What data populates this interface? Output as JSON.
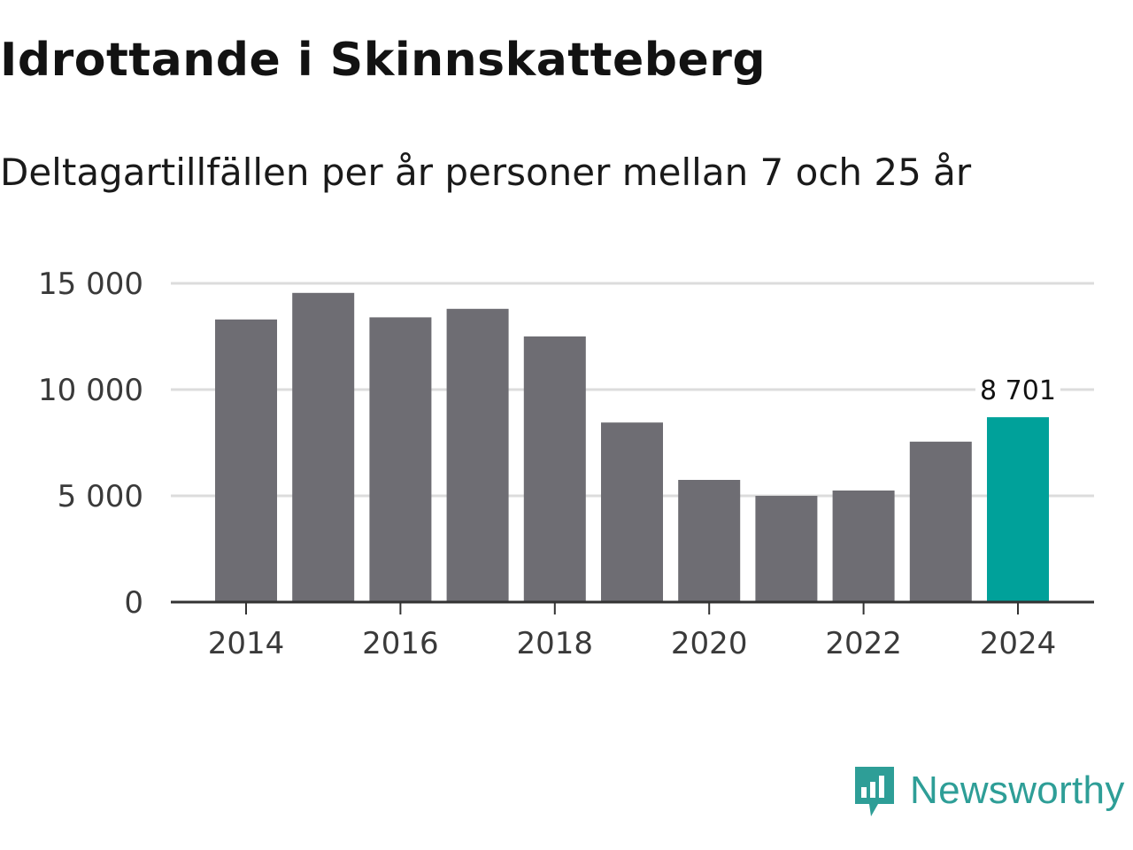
{
  "header": {
    "title": "Idrottande i Skinnskatteberg",
    "subtitle": "Deltagartillfällen per år personer mellan 7 och 25 år"
  },
  "brand": {
    "name": "Newsworthy",
    "color": "#2e9e97"
  },
  "colors": {
    "bar": "#6e6d73",
    "highlight": "#00a19a",
    "grid": "#dcdcdc",
    "axis": "#333333"
  },
  "chart_data": {
    "type": "bar",
    "title": "Idrottande i Skinnskatteberg",
    "subtitle": "Deltagartillfällen per år personer mellan 7 och 25 år",
    "xlabel": "",
    "ylabel": "",
    "categories": [
      "2014",
      "2015",
      "2016",
      "2017",
      "2018",
      "2019",
      "2020",
      "2021",
      "2022",
      "2023",
      "2024"
    ],
    "values": [
      13300,
      14550,
      13400,
      13800,
      12500,
      8450,
      5750,
      5000,
      5250,
      7550,
      8701
    ],
    "ylim": [
      0,
      15000
    ],
    "yticks": [
      0,
      5000,
      10000,
      15000
    ],
    "ytick_labels": [
      "0",
      "5 000",
      "10 000",
      "15 000"
    ],
    "xtick_labels": [
      "2014",
      "2016",
      "2018",
      "2020",
      "2022",
      "2024"
    ],
    "highlight_index": 10,
    "annotation": {
      "category": "2024",
      "label": "8 701"
    },
    "grid": true
  }
}
